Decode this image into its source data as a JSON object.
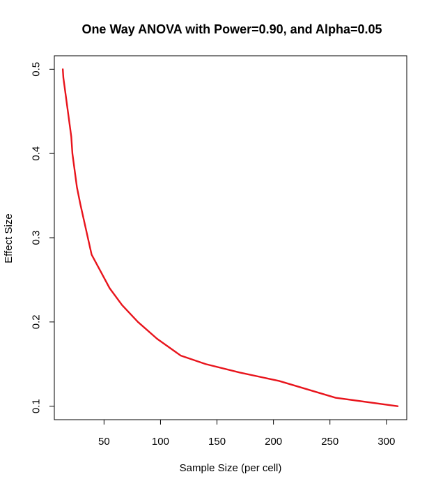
{
  "chart_data": {
    "type": "line",
    "title": "One Way ANOVA with Power=0.90, and Alpha=0.05",
    "xlabel": "Sample Size (per cell)",
    "ylabel": "Effect Size",
    "xlim": [
      6,
      318
    ],
    "ylim": [
      0.084,
      0.516
    ],
    "xticks": [
      50,
      100,
      150,
      200,
      250,
      300
    ],
    "yticks": [
      0.1,
      0.2,
      0.3,
      0.4,
      0.5
    ],
    "grid": false,
    "legend": "none",
    "series": [
      {
        "color": "#e8141c",
        "x": [
          13.5,
          14,
          15,
          16,
          17,
          18,
          19,
          21,
          22,
          25,
          26,
          29,
          34,
          39,
          47,
          55,
          66,
          80,
          97,
          118,
          140,
          170,
          205,
          255,
          310
        ],
        "y": [
          0.5,
          0.49,
          0.48,
          0.47,
          0.46,
          0.45,
          0.44,
          0.42,
          0.4,
          0.37,
          0.36,
          0.34,
          0.31,
          0.28,
          0.26,
          0.24,
          0.22,
          0.2,
          0.18,
          0.16,
          0.15,
          0.14,
          0.13,
          0.11,
          0.1
        ]
      }
    ]
  }
}
